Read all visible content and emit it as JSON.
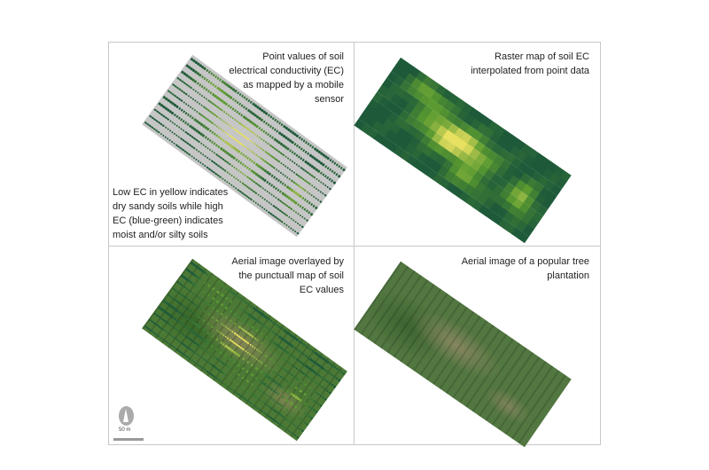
{
  "panels": {
    "point_map": {
      "caption": "Point values of soil\nelectrical conductivity (EC)\nas mapped by a mobile\nsensor",
      "legend_note": "Low EC in yellow indicates\ndry sandy soils while high\nEC (blue-green) indicates\nmoist and/or silty soils"
    },
    "raster_map": {
      "caption": "Raster map of soil EC\ninterpolated from point data"
    },
    "aerial_overlay": {
      "caption": "Aerial image overlayed by\nthe punctuall map of soil\nEC values"
    },
    "aerial_image": {
      "caption": "Aerial image of a popular tree\nplantation"
    }
  },
  "scale_bar": {
    "label": "50 m",
    "north_icon": "north-arrow-icon"
  },
  "colors": {
    "low_ec": "#e8e060",
    "high_ec": "#1e5a3a",
    "mid_ec": "#5a9a30",
    "background_points": "#c6c6c6"
  }
}
